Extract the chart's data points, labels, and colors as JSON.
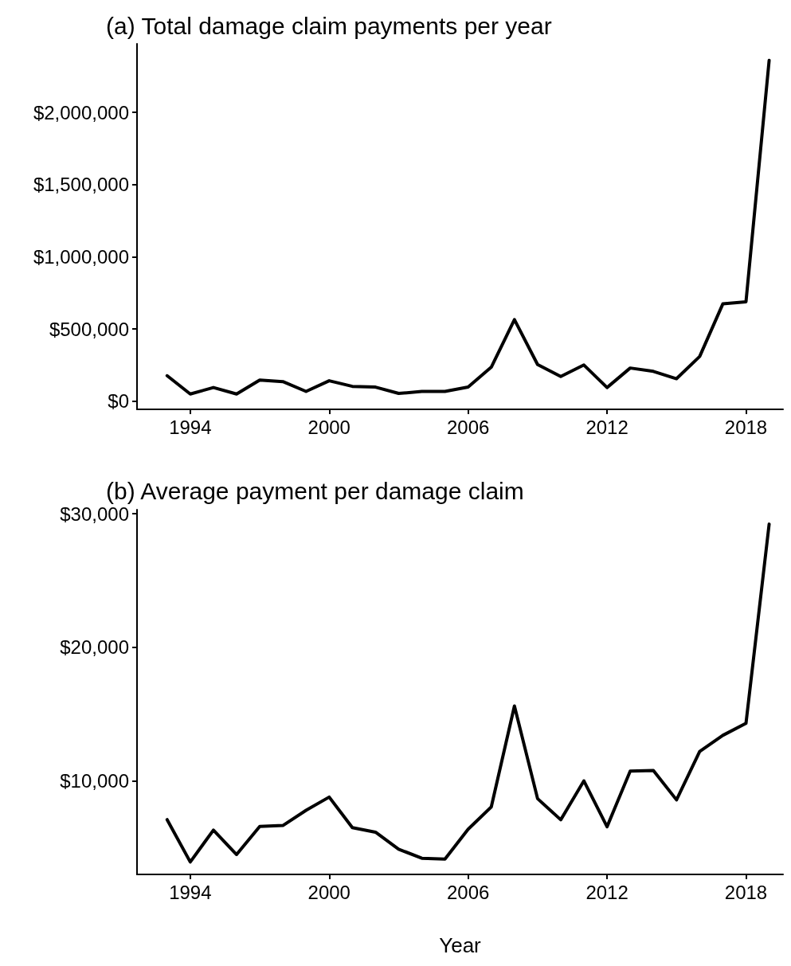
{
  "chart_data": [
    {
      "type": "line",
      "title": "(a) Total damage claim payments per year",
      "x": [
        1993,
        1994,
        1995,
        1996,
        1997,
        1998,
        1999,
        2000,
        2001,
        2002,
        2003,
        2004,
        2005,
        2006,
        2007,
        2008,
        2009,
        2010,
        2011,
        2012,
        2013,
        2014,
        2015,
        2016,
        2017,
        2018,
        2019
      ],
      "series": [
        {
          "color": "#000000",
          "values": [
            177000,
            50000,
            95000,
            50000,
            147000,
            136000,
            68000,
            142000,
            103000,
            98000,
            54000,
            68000,
            68000,
            98000,
            236000,
            565000,
            254000,
            171000,
            251000,
            95000,
            230000,
            207000,
            156000,
            310000,
            674000,
            689000,
            2360000
          ]
        }
      ],
      "xlim": [
        1991.7,
        2019.6
      ],
      "xticks": [
        1994,
        2000,
        2006,
        2012,
        2018
      ],
      "ylim": [
        -56000,
        2475000
      ],
      "yticks": [
        {
          "value": 0,
          "label": "$0"
        },
        {
          "value": 500000,
          "label": "$500,000"
        },
        {
          "value": 1000000,
          "label": "$1,000,000"
        },
        {
          "value": 1500000,
          "label": "$1,500,000"
        },
        {
          "value": 2000000,
          "label": "$2,000,000"
        }
      ],
      "grid": false,
      "marker": "none",
      "line_style": "solid"
    },
    {
      "type": "line",
      "title": "(b) Average payment per damage claim",
      "xlabel": "Year",
      "x": [
        1993,
        1994,
        1995,
        1996,
        1997,
        1998,
        1999,
        2000,
        2001,
        2002,
        2003,
        2004,
        2005,
        2006,
        2007,
        2008,
        2009,
        2010,
        2011,
        2012,
        2013,
        2014,
        2015,
        2016,
        2017,
        2018,
        2019
      ],
      "series": [
        {
          "color": "#000000",
          "values": [
            7100,
            3930,
            6320,
            4490,
            6590,
            6660,
            7800,
            8790,
            6500,
            6160,
            4890,
            4210,
            4150,
            6380,
            8050,
            15610,
            8670,
            7090,
            10000,
            6570,
            10740,
            10780,
            8580,
            12200,
            13410,
            14310,
            29220
          ]
        }
      ],
      "xlim": [
        1991.7,
        2019.6
      ],
      "xticks": [
        1994,
        2000,
        2006,
        2012,
        2018
      ],
      "ylim": [
        3000,
        30300
      ],
      "yticks": [
        {
          "value": 10000,
          "label": "$10,000"
        },
        {
          "value": 20000,
          "label": "$20,000"
        },
        {
          "value": 30000,
          "label": "$30,000"
        }
      ],
      "grid": false,
      "marker": "none",
      "line_style": "solid"
    }
  ]
}
